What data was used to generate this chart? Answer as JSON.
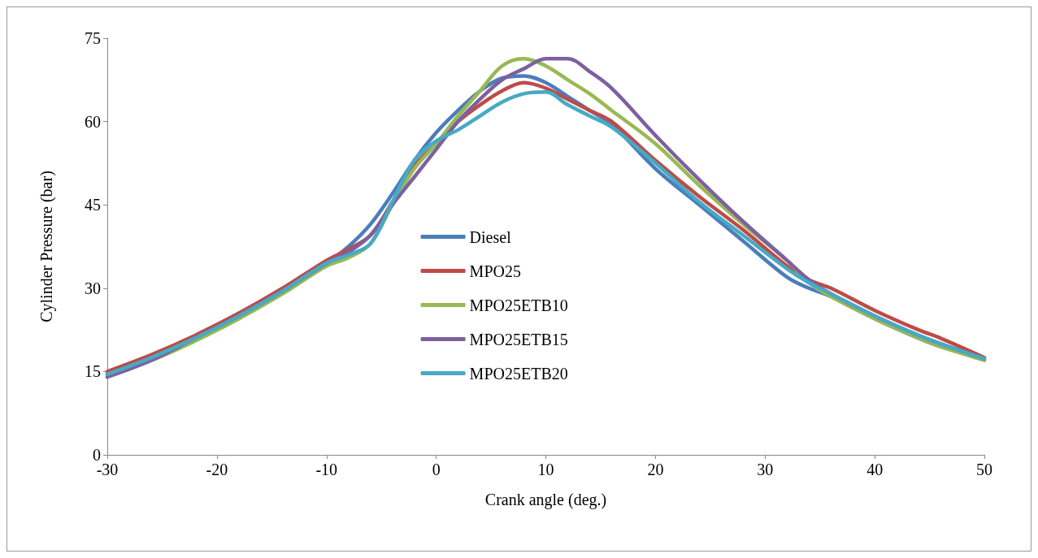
{
  "chart_data": {
    "type": "line",
    "xlabel": "Crank angle (deg.)",
    "ylabel": "Cylinder Pressure (bar)",
    "x": [
      -30,
      -26,
      -22,
      -18,
      -14,
      -10,
      -8,
      -6,
      -4,
      -2,
      0,
      2,
      4,
      6,
      8,
      10,
      12,
      14,
      16,
      20,
      24,
      28,
      32,
      34,
      36,
      40,
      44,
      46,
      50
    ],
    "series": [
      {
        "name": "Diesel",
        "color": "#4a7ebb",
        "values": [
          14.5,
          17.5,
          21,
          25,
          29.5,
          34.5,
          37.5,
          41.5,
          47,
          53,
          58,
          62,
          65.5,
          67.8,
          68.2,
          67,
          64.5,
          62,
          59.5,
          51.5,
          45,
          38.5,
          32,
          30,
          28.5,
          24.5,
          21,
          19.5,
          17.3
        ]
      },
      {
        "name": "MPO25",
        "color": "#be4b48",
        "values": [
          15,
          18,
          21.5,
          25.5,
          30,
          35,
          37,
          39.5,
          45.5,
          52,
          56,
          60,
          63,
          65.5,
          67,
          66,
          64,
          62,
          60,
          53,
          46.5,
          40.5,
          34,
          31.5,
          30,
          26,
          22.5,
          21,
          17.5
        ]
      },
      {
        "name": "MPO25ETB10",
        "color": "#98b954",
        "values": [
          14.5,
          17,
          20.5,
          24.5,
          29,
          34,
          35.5,
          38,
          45,
          51.5,
          56,
          61,
          65.5,
          70,
          71.3,
          70,
          67.5,
          65,
          62,
          56,
          48.5,
          41.5,
          35,
          31,
          28.5,
          24.5,
          21,
          19.5,
          17
        ]
      },
      {
        "name": "MPO25ETB15",
        "color": "#7d60a0",
        "values": [
          14,
          17,
          21,
          25,
          29.5,
          34.5,
          36.5,
          39.5,
          45,
          50,
          55,
          60,
          64,
          67.5,
          69.5,
          71.3,
          71.3,
          69,
          66,
          57.5,
          49.5,
          42,
          35,
          31.5,
          29,
          25,
          21.5,
          20,
          17.3
        ]
      },
      {
        "name": "MPO25ETB20",
        "color": "#46aac5",
        "values": [
          14.5,
          17.5,
          21,
          25,
          29.5,
          34.5,
          36,
          38,
          45.5,
          53,
          56.5,
          58.5,
          61,
          63.5,
          65,
          65.3,
          63,
          61,
          59,
          52.5,
          45.5,
          39.5,
          33.5,
          31,
          29,
          25,
          21.5,
          20,
          17.3
        ]
      }
    ],
    "xlim": [
      -30,
      50
    ],
    "xticks": [
      -30,
      -20,
      -10,
      0,
      10,
      20,
      30,
      40,
      50
    ],
    "ylim": [
      0,
      75
    ],
    "yticks": [
      0,
      15,
      30,
      45,
      60,
      75
    ],
    "grid": false,
    "legend": "center",
    "marker": "none",
    "line_style": "solid"
  }
}
